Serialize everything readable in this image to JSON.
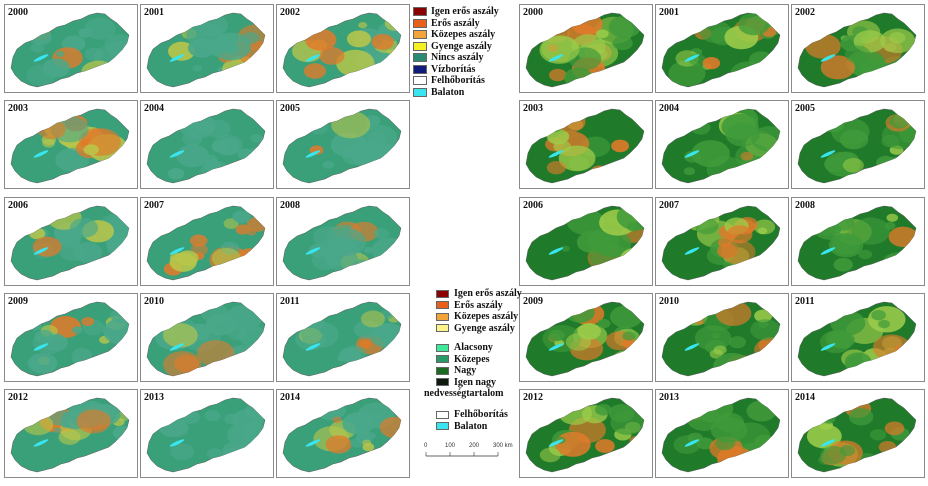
{
  "left_grid": {
    "years": [
      "2000",
      "2001",
      "2002",
      "2003",
      "2004",
      "2005",
      "2006",
      "2007",
      "2008",
      "2009",
      "2010",
      "2011",
      "2012",
      "2013",
      "2014"
    ],
    "drought_level": [
      0.2,
      0.25,
      0.6,
      0.85,
      0.1,
      0.15,
      0.15,
      0.8,
      0.2,
      0.5,
      0.1,
      0.3,
      0.45,
      0.1,
      0.45
    ]
  },
  "right_grid": {
    "years": [
      "2000",
      "2001",
      "2002",
      "2003",
      "2004",
      "2005",
      "2006",
      "2007",
      "2008",
      "2009",
      "2010",
      "2011",
      "2012",
      "2013",
      "2014"
    ],
    "drought_level": [
      0.75,
      0.5,
      0.7,
      0.75,
      0.2,
      0.15,
      0.3,
      0.8,
      0.25,
      0.45,
      0.35,
      0.35,
      0.55,
      0.25,
      0.5
    ]
  },
  "legend_top": {
    "items": [
      {
        "label": "Igen erős aszály",
        "color": "#8b0000"
      },
      {
        "label": "Erős aszály",
        "color": "#e8601c"
      },
      {
        "label": "Közepes aszály",
        "color": "#f2a33a"
      },
      {
        "label": "Gyenge aszály",
        "color": "#f5ef24"
      },
      {
        "label": "Nincs aszály",
        "color": "#2b8a74"
      },
      {
        "label": "Vízborítás",
        "color": "#101a7a"
      },
      {
        "label": "Felhőborítás",
        "color": "#ffffff"
      },
      {
        "label": "Balaton",
        "color": "#39e6f0"
      }
    ]
  },
  "legend_bottom": {
    "drought_items": [
      {
        "label": "Igen erős aszály",
        "color": "#8b0000"
      },
      {
        "label": "Erős aszály",
        "color": "#e8601c"
      },
      {
        "label": "Közepes aszály",
        "color": "#f2a33a"
      },
      {
        "label": "Gyenge aszály",
        "color": "#fbf48a"
      }
    ],
    "moisture_items": [
      {
        "label": "Alacsony",
        "color": "#3fe89a"
      },
      {
        "label": "Közepes",
        "color": "#2a9a6a"
      },
      {
        "label": "Nagy",
        "color": "#1c6a22"
      },
      {
        "label": "Igen nagy",
        "color": "#0d1a0d"
      }
    ],
    "moisture_caption": "nedvességtartalom",
    "other_items": [
      {
        "label": "Felhőborítás",
        "color": "#ffffff"
      },
      {
        "label": "Balaton",
        "color": "#39e6f0"
      }
    ]
  },
  "scale_bar": {
    "ticks": [
      "0",
      "100",
      "200",
      "300 km"
    ]
  },
  "colors": {
    "left_base": "#3aa07a",
    "left_mid": "#b9c64a",
    "left_hot": "#e07a2a",
    "right_base": "#1f7a2a",
    "right_mid": "#9ccc4a",
    "right_hot": "#e07a2a",
    "lake": "#39e6f0"
  }
}
